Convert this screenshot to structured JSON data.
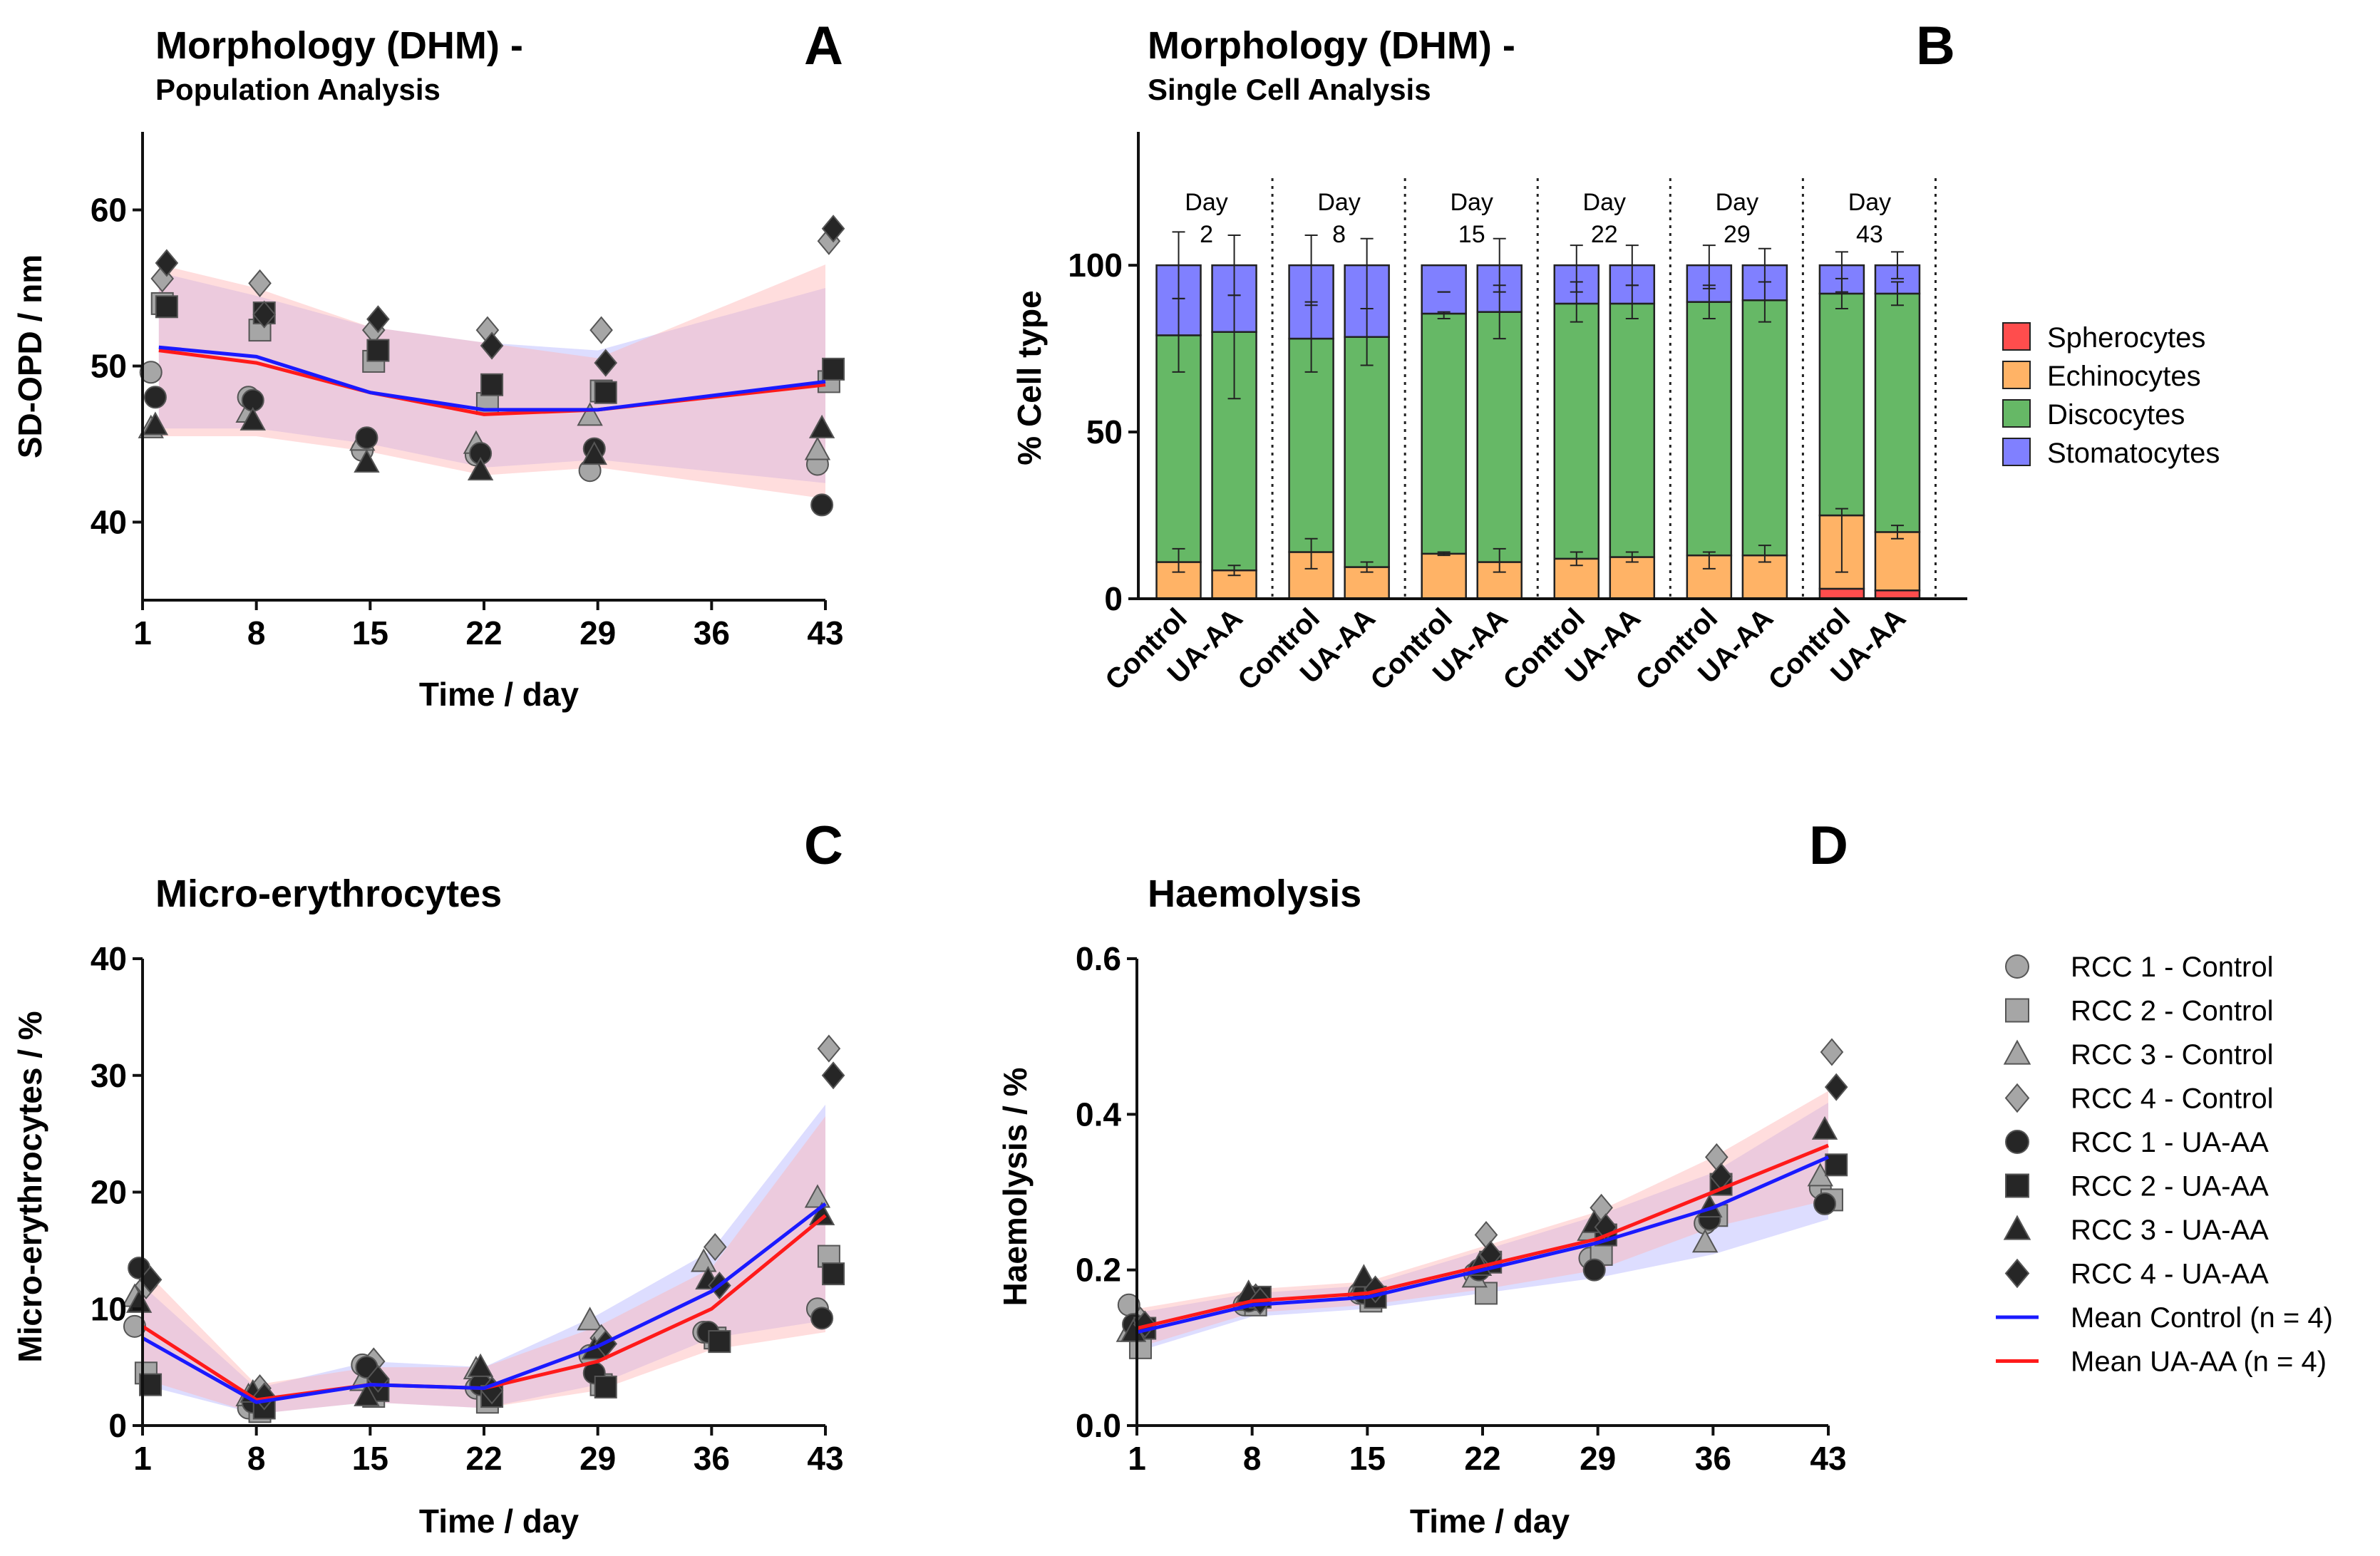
{
  "figure": {
    "legend_right": [
      {
        "label": "RCC 1 - Control",
        "marker": "circle",
        "color": "#a6a6a6"
      },
      {
        "label": "RCC 2 - Control",
        "marker": "square",
        "color": "#a6a6a6"
      },
      {
        "label": "RCC 3 - Control",
        "marker": "triangle",
        "color": "#a6a6a6"
      },
      {
        "label": "RCC 4 - Control",
        "marker": "diamond",
        "color": "#a6a6a6"
      },
      {
        "label": "RCC 1 - UA-AA",
        "marker": "circle",
        "color": "#262626"
      },
      {
        "label": "RCC 2 - UA-AA",
        "marker": "square",
        "color": "#262626"
      },
      {
        "label": "RCC 3 - UA-AA",
        "marker": "triangle",
        "color": "#262626"
      },
      {
        "label": "RCC 4 - UA-AA",
        "marker": "diamond",
        "color": "#262626"
      },
      {
        "label": "Mean Control (n = 4)",
        "marker": "line",
        "color": "#1a1aff"
      },
      {
        "label": "Mean UA-AA (n = 4)",
        "marker": "line",
        "color": "#ff1a1a"
      }
    ],
    "colors": {
      "control_mean": "#1a1aff",
      "uaaa_mean": "#ff1a1a",
      "control_marker": "#a6a6a6",
      "uaaa_marker": "#262626",
      "control_band": "#b4b4ff",
      "uaaa_band": "#ffb4b4"
    }
  },
  "chart_data": [
    {
      "panel": "A",
      "type": "scatter",
      "title": "Morphology (DHM) -",
      "subtitle": "Population Analysis",
      "xlabel": "Time / day",
      "ylabel": "SD-OPD / nm",
      "xlim": [
        1,
        43
      ],
      "ylim": [
        35,
        65
      ],
      "xticks": [
        1,
        8,
        15,
        22,
        29,
        36,
        43
      ],
      "yticks": [
        40,
        50,
        60
      ],
      "x": [
        2,
        8,
        15,
        22,
        29,
        43
      ],
      "control": {
        "mean": [
          51.2,
          50.6,
          48.3,
          47.2,
          47.2,
          49.0
        ],
        "lower": [
          46.0,
          46.0,
          45.0,
          43.5,
          44.0,
          42.5
        ],
        "upper": [
          56.0,
          54.5,
          52.5,
          51.5,
          51.0,
          55.0
        ],
        "points": [
          {
            "name": "RCC 1 - Control",
            "values": [
              49.6,
              48.0,
              44.6,
              44.3,
              43.3,
              43.7
            ]
          },
          {
            "name": "RCC 2 - Control",
            "values": [
              54.0,
              52.3,
              50.3,
              47.6,
              48.4,
              49.0
            ]
          },
          {
            "name": "RCC 3 - Control",
            "values": [
              46.0,
              47.0,
              45.2,
              45.0,
              46.8,
              44.6
            ]
          },
          {
            "name": "RCC 4 - Control",
            "values": [
              55.6,
              55.3,
              52.3,
              52.3,
              52.3,
              58.0
            ]
          }
        ]
      },
      "uaaa": {
        "mean": [
          51.0,
          50.2,
          48.3,
          46.9,
          47.2,
          48.8
        ],
        "lower": [
          45.5,
          45.5,
          44.5,
          43.0,
          43.5,
          41.5
        ],
        "upper": [
          56.5,
          55.0,
          52.5,
          51.5,
          50.5,
          56.5
        ],
        "points": [
          {
            "name": "RCC 1 - UA-AA",
            "values": [
              48.0,
              47.8,
              45.4,
              44.4,
              44.7,
              41.1
            ]
          },
          {
            "name": "RCC 2 - UA-AA",
            "values": [
              53.8,
              53.4,
              51.0,
              48.8,
              48.3,
              49.8
            ]
          },
          {
            "name": "RCC 3 - UA-AA",
            "values": [
              46.2,
              46.5,
              43.8,
              43.3,
              44.3,
              46.0
            ]
          },
          {
            "name": "RCC 4 - UA-AA",
            "values": [
              56.6,
              53.3,
              53.0,
              51.3,
              50.2,
              58.8
            ]
          }
        ]
      }
    },
    {
      "panel": "B",
      "type": "bar",
      "stacked": true,
      "title": "Morphology (DHM) -",
      "subtitle": "Single Cell Analysis",
      "ylabel": "% Cell type",
      "ylim": [
        0,
        140
      ],
      "yticks": [
        0,
        50,
        100
      ],
      "day_labels": [
        [
          "Day",
          "2"
        ],
        [
          "Day",
          "8"
        ],
        [
          "Day",
          "15"
        ],
        [
          "Day",
          "22"
        ],
        [
          "Day",
          "29"
        ],
        [
          "Day",
          "43"
        ]
      ],
      "categories": [
        "Control",
        "UA-AA",
        "Control",
        "UA-AA",
        "Control",
        "UA-AA",
        "Control",
        "UA-AA",
        "Control",
        "UA-AA",
        "Control",
        "UA-AA"
      ],
      "series": [
        {
          "name": "Spherocytes",
          "color": "#ff4d4d",
          "values": [
            0,
            0,
            0,
            0,
            0,
            0,
            0,
            0,
            0,
            0,
            3,
            2.5
          ]
        },
        {
          "name": "Echinocytes",
          "color": "#ffb366",
          "values": [
            11,
            8.5,
            14,
            9.5,
            13.5,
            11,
            12,
            12.5,
            13,
            13,
            22,
            17.5
          ]
        },
        {
          "name": "Discocytes",
          "color": "#66b866",
          "values": [
            68,
            71.5,
            64,
            69,
            72,
            75,
            76.5,
            76,
            76,
            76.5,
            66.5,
            71.5
          ]
        },
        {
          "name": "Stomatocytes",
          "color": "#8080ff",
          "values": [
            21,
            20,
            22,
            21.5,
            14.5,
            14,
            11.5,
            11.5,
            11,
            10.5,
            8.5,
            8.5
          ]
        }
      ],
      "error_bars": {
        "echinocytes_top": [
          [
            8,
            15
          ],
          [
            7,
            10
          ],
          [
            9,
            18
          ],
          [
            8,
            11
          ],
          [
            13,
            14
          ],
          [
            8,
            15
          ],
          [
            10,
            14
          ],
          [
            11,
            14
          ],
          [
            9,
            14
          ],
          [
            11,
            16
          ],
          [
            8,
            27
          ],
          [
            18,
            22
          ]
        ],
        "discocytes_top": [
          [
            68,
            90
          ],
          [
            60,
            91
          ],
          [
            68,
            89
          ],
          [
            70,
            87
          ],
          [
            84,
            86
          ],
          [
            78,
            94
          ],
          [
            83,
            95
          ],
          [
            84,
            94
          ],
          [
            84,
            94
          ],
          [
            83,
            95
          ],
          [
            87,
            96
          ],
          [
            88,
            95
          ]
        ],
        "total": [
          [
            90,
            110
          ],
          [
            91,
            109
          ],
          [
            88,
            109
          ],
          [
            87,
            108
          ],
          [
            92,
            92
          ],
          [
            92,
            108
          ],
          [
            92,
            106
          ],
          [
            94,
            106
          ],
          [
            93,
            106
          ],
          [
            95,
            105
          ],
          [
            92,
            104
          ],
          [
            96,
            104
          ]
        ]
      }
    },
    {
      "panel": "C",
      "type": "scatter",
      "title": "Micro-erythrocytes",
      "xlabel": "Time / day",
      "ylabel": "Micro-erythrocytes / %",
      "xlim": [
        1,
        43
      ],
      "ylim": [
        0,
        40
      ],
      "xticks": [
        1,
        8,
        15,
        22,
        29,
        36,
        43
      ],
      "yticks": [
        0,
        10,
        20,
        30,
        40
      ],
      "x": [
        1,
        8,
        15,
        22,
        29,
        36,
        43
      ],
      "control": {
        "mean": [
          7.5,
          2.0,
          3.5,
          3.2,
          6.8,
          11.5,
          19.0
        ],
        "lower": [
          3.5,
          1.0,
          2.0,
          1.5,
          3.5,
          7.5,
          9.0
        ],
        "upper": [
          12.0,
          3.2,
          5.5,
          5.0,
          9.5,
          15.0,
          27.5
        ],
        "points": [
          {
            "name": "RCC 1 - Control",
            "values": [
              8.5,
              1.5,
              5.2,
              3.2,
              6.0,
              8.0,
              10.0
            ]
          },
          {
            "name": "RCC 2 - Control",
            "values": [
              4.5,
              1.2,
              2.5,
              2.0,
              3.5,
              7.5,
              14.5
            ]
          },
          {
            "name": "RCC 3 - Control",
            "values": [
              11.0,
              2.5,
              3.8,
              4.8,
              9.0,
              14.0,
              19.5
            ]
          },
          {
            "name": "RCC 4 - Control",
            "values": [
              12.0,
              3.2,
              5.5,
              3.5,
              7.5,
              15.3,
              32.3
            ]
          }
        ]
      },
      "uaaa": {
        "mean": [
          8.5,
          2.2,
          3.5,
          3.2,
          5.5,
          10.0,
          18.0
        ],
        "lower": [
          4.0,
          1.0,
          2.0,
          1.5,
          3.0,
          6.5,
          8.0
        ],
        "upper": [
          13.5,
          3.5,
          5.0,
          5.0,
          8.5,
          13.5,
          26.5
        ],
        "points": [
          {
            "name": "RCC 1 - UA-AA",
            "values": [
              13.5,
              2.0,
              5.0,
              3.5,
              4.5,
              8.0,
              9.2
            ]
          },
          {
            "name": "RCC 2 - UA-AA",
            "values": [
              3.5,
              1.5,
              3.0,
              2.5,
              3.3,
              7.2,
              13.0
            ]
          },
          {
            "name": "RCC 3 - UA-AA",
            "values": [
              10.5,
              2.8,
              2.5,
              5.0,
              6.5,
              12.5,
              18.0
            ]
          },
          {
            "name": "RCC 4 - UA-AA",
            "values": [
              12.5,
              2.5,
              4.0,
              3.0,
              7.0,
              12.0,
              30.0
            ]
          }
        ]
      }
    },
    {
      "panel": "D",
      "type": "scatter",
      "title": "Haemolysis",
      "xlabel": "Time / day",
      "ylabel": "Haemolysis / %",
      "xlim": [
        1,
        43
      ],
      "ylim": [
        0,
        0.6
      ],
      "xticks": [
        1,
        8,
        15,
        22,
        29,
        36,
        43
      ],
      "yticks": [
        0.0,
        0.2,
        0.4,
        0.6
      ],
      "ytick_labels": [
        "0.0",
        "0.2",
        "0.4",
        "0.6"
      ],
      "x": [
        1,
        8,
        15,
        22,
        29,
        36,
        43
      ],
      "control": {
        "mean": [
          0.12,
          0.155,
          0.165,
          0.2,
          0.235,
          0.28,
          0.345
        ],
        "lower": [
          0.095,
          0.14,
          0.15,
          0.17,
          0.19,
          0.22,
          0.265
        ],
        "upper": [
          0.145,
          0.17,
          0.18,
          0.225,
          0.27,
          0.325,
          0.415
        ],
        "points": [
          {
            "name": "RCC 1 - Control",
            "values": [
              0.155,
              0.155,
              0.17,
              0.195,
              0.215,
              0.26,
              0.305
            ]
          },
          {
            "name": "RCC 2 - Control",
            "values": [
              0.1,
              0.155,
              0.16,
              0.17,
              0.22,
              0.27,
              0.29
            ]
          },
          {
            "name": "RCC 3 - Control",
            "values": [
              0.12,
              0.16,
              0.175,
              0.19,
              0.25,
              0.235,
              0.32
            ]
          },
          {
            "name": "RCC 4 - Control",
            "values": [
              0.135,
              0.165,
              0.17,
              0.245,
              0.28,
              0.345,
              0.48
            ]
          }
        ]
      },
      "uaaa": {
        "mean": [
          0.125,
          0.16,
          0.17,
          0.205,
          0.24,
          0.3,
          0.36
        ],
        "lower": [
          0.1,
          0.145,
          0.155,
          0.175,
          0.2,
          0.255,
          0.29
        ],
        "upper": [
          0.15,
          0.175,
          0.185,
          0.23,
          0.275,
          0.345,
          0.43
        ],
        "points": [
          {
            "name": "RCC 1 - UA-AA",
            "values": [
              0.13,
              0.16,
              0.17,
              0.2,
              0.2,
              0.265,
              0.285
            ]
          },
          {
            "name": "RCC 2 - UA-AA",
            "values": [
              0.125,
              0.165,
              0.165,
              0.21,
              0.245,
              0.31,
              0.335
            ]
          },
          {
            "name": "RCC 3 - UA-AA",
            "values": [
              0.12,
              0.17,
              0.19,
              0.205,
              0.26,
              0.28,
              0.38
            ]
          },
          {
            "name": "RCC 4 - UA-AA",
            "values": [
              0.13,
              0.16,
              0.175,
              0.22,
              0.255,
              0.32,
              0.435
            ]
          }
        ]
      }
    }
  ]
}
